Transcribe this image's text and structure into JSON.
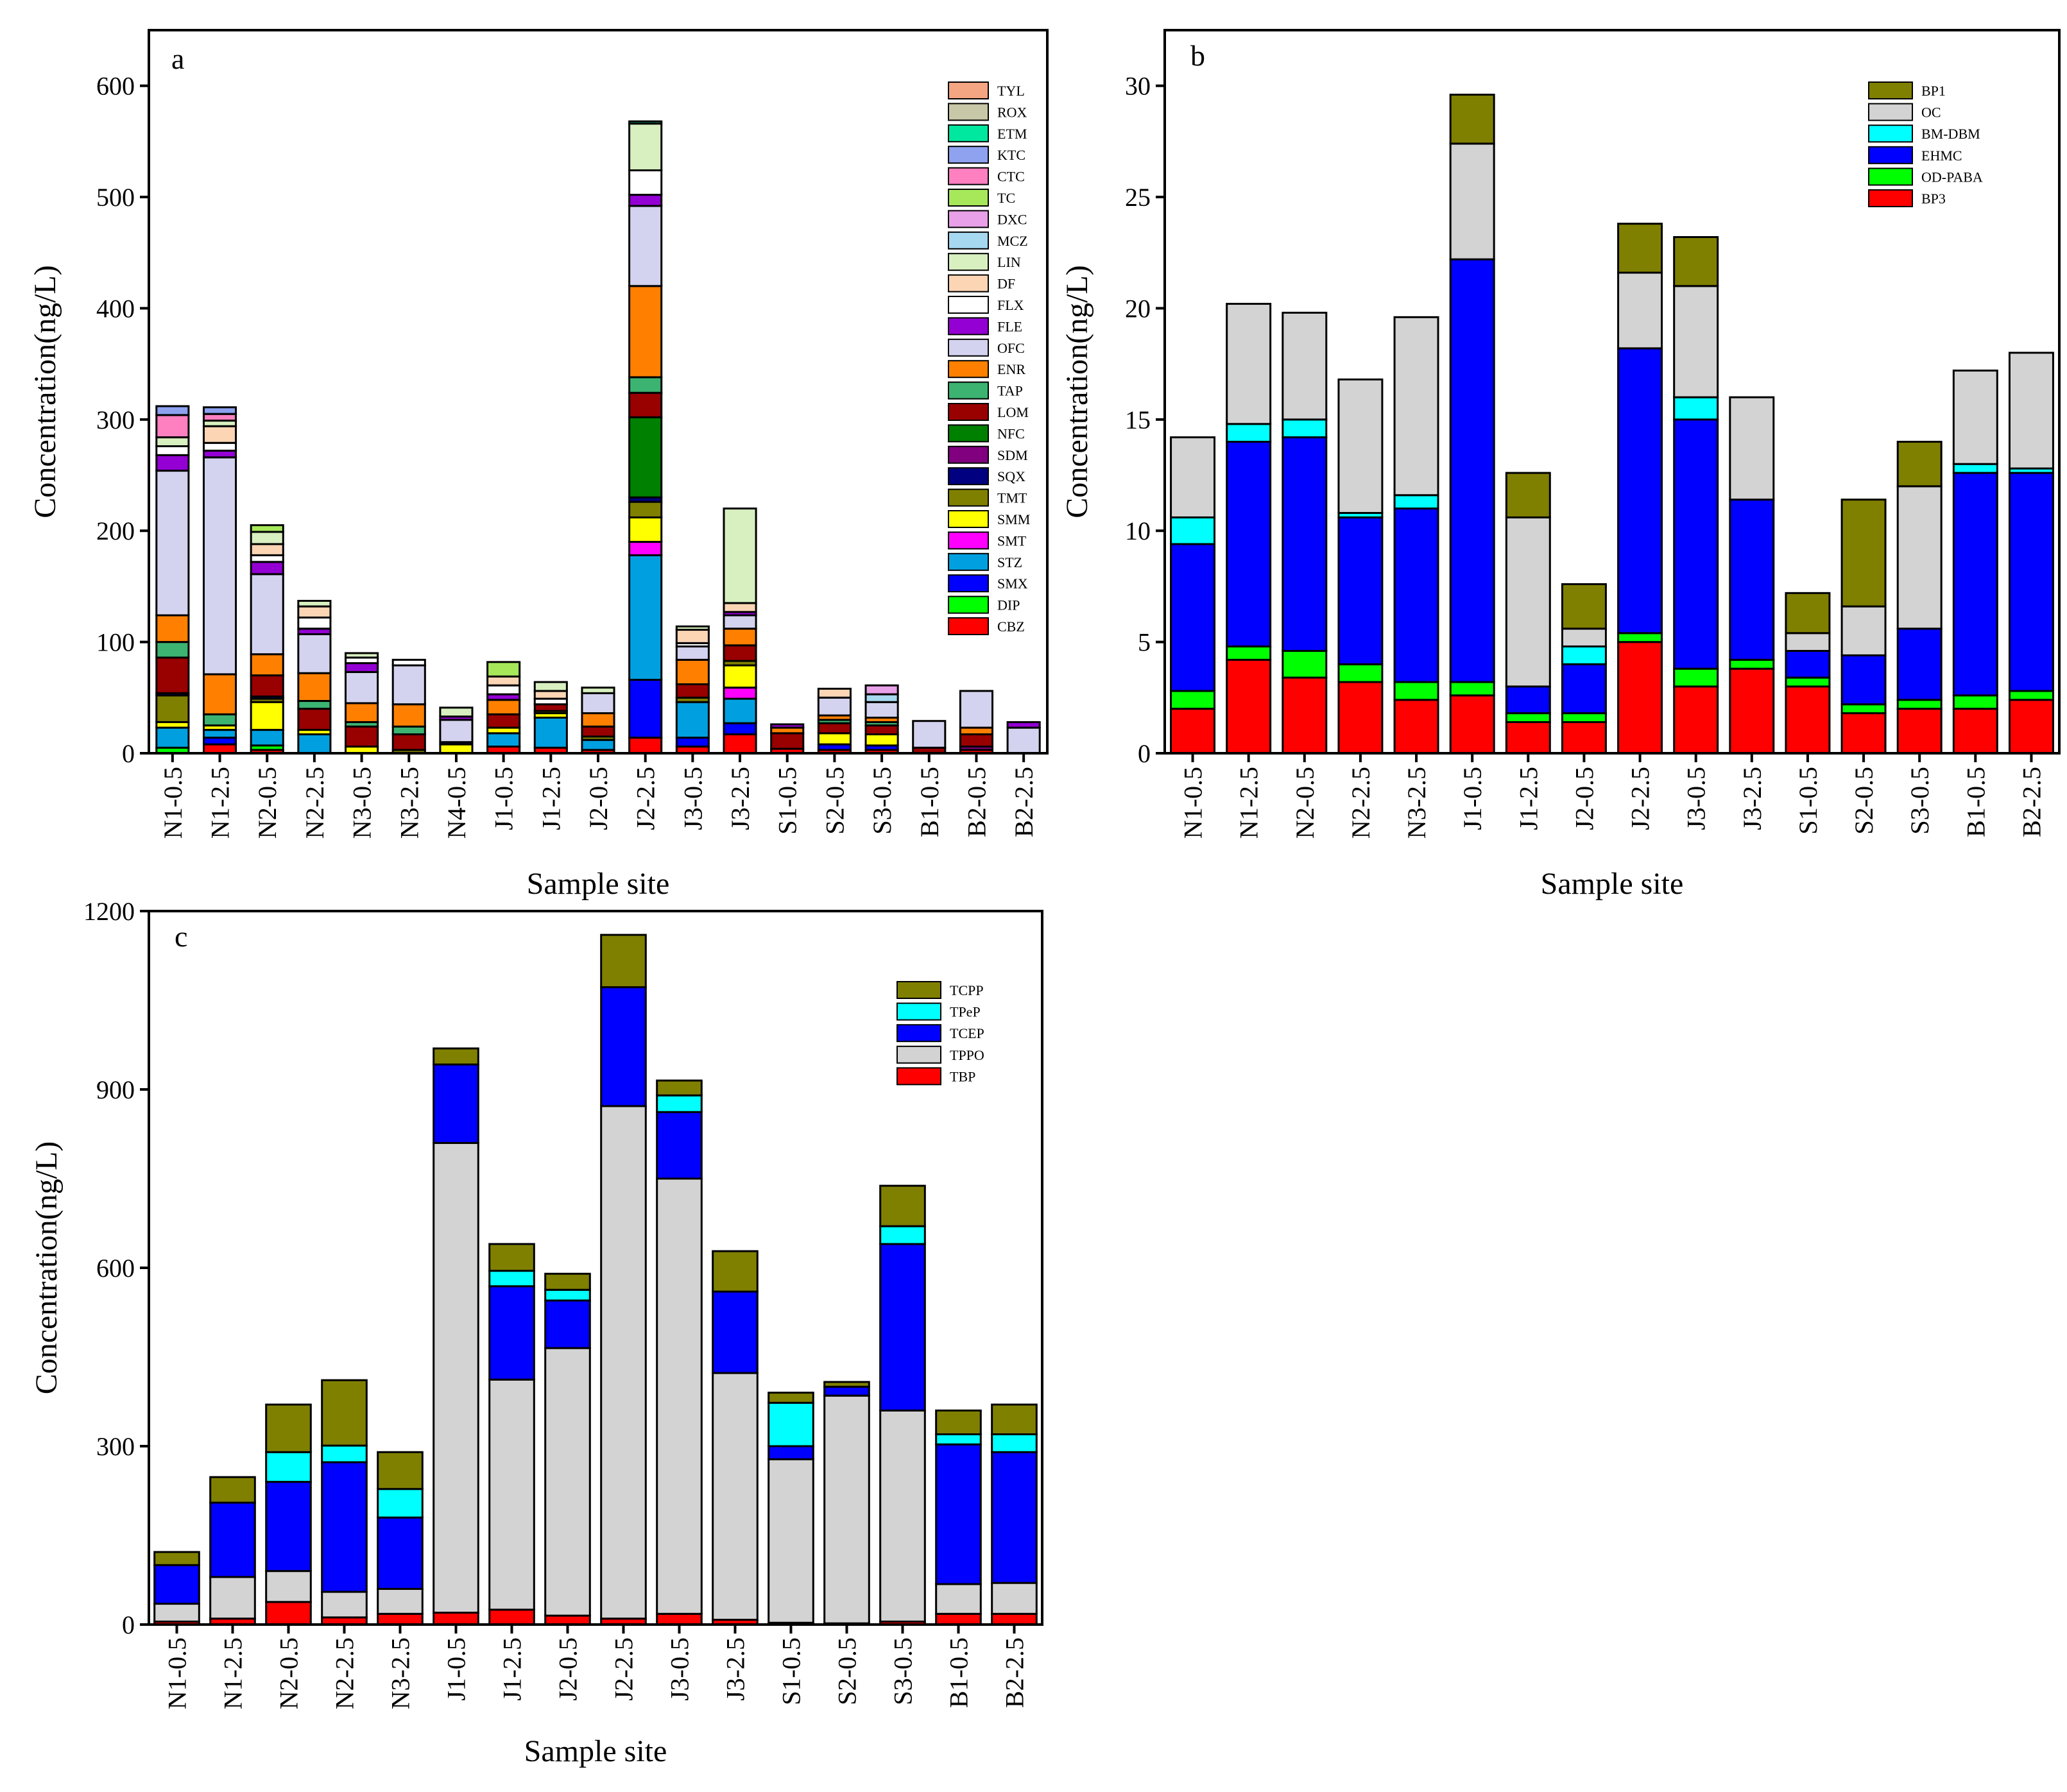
{
  "chart_data": [
    {
      "panel_label": "a",
      "type": "bar",
      "stacked": true,
      "ylabel": "Concentration(ng/L)",
      "xlabel": "Sample site",
      "ylim": [
        0,
        650
      ],
      "yticks": [
        0,
        100,
        200,
        300,
        400,
        500,
        600
      ],
      "legend_position": "top-right",
      "categories": [
        "N1-0.5",
        "N1-2.5",
        "N2-0.5",
        "N2-2.5",
        "N3-0.5",
        "N3-2.5",
        "N4-0.5",
        "J1-0.5",
        "J1-2.5",
        "J2-0.5",
        "J2-2.5",
        "J3-0.5",
        "J3-2.5",
        "S1-0.5",
        "S2-0.5",
        "S3-0.5",
        "B1-0.5",
        "B2-0.5",
        "B2-2.5"
      ],
      "series": [
        {
          "name": "CBZ",
          "color": "#ff0000",
          "values": [
            0,
            8,
            3,
            0,
            0,
            0,
            0,
            6,
            5,
            3,
            14,
            6,
            17,
            4,
            3,
            3,
            0,
            3,
            0
          ]
        },
        {
          "name": "DIP",
          "color": "#00ff00",
          "values": [
            5,
            0,
            4,
            0,
            0,
            0,
            0,
            0,
            0,
            0,
            0,
            0,
            0,
            0,
            0,
            0,
            0,
            0,
            0
          ]
        },
        {
          "name": "SMX",
          "color": "#0000ff",
          "values": [
            0,
            6,
            0,
            0,
            0,
            0,
            0,
            0,
            0,
            0,
            52,
            8,
            10,
            0,
            5,
            4,
            0,
            0,
            0
          ]
        },
        {
          "name": "STZ",
          "color": "#00a0e0",
          "values": [
            18,
            7,
            14,
            17,
            0,
            0,
            0,
            12,
            27,
            9,
            112,
            32,
            22,
            0,
            0,
            0,
            0,
            0,
            0
          ]
        },
        {
          "name": "SMT",
          "color": "#ff00ff",
          "values": [
            0,
            0,
            0,
            0,
            0,
            0,
            0,
            0,
            0,
            0,
            12,
            0,
            10,
            0,
            0,
            0,
            0,
            0,
            0
          ]
        },
        {
          "name": "SMM",
          "color": "#ffff00",
          "values": [
            5,
            4,
            25,
            4,
            6,
            0,
            8,
            5,
            4,
            0,
            22,
            0,
            20,
            0,
            10,
            10,
            0,
            0,
            0
          ]
        },
        {
          "name": "TMT",
          "color": "#808000",
          "values": [
            24,
            0,
            3,
            0,
            0,
            3,
            0,
            0,
            2,
            3,
            14,
            4,
            4,
            0,
            0,
            0,
            0,
            0,
            0
          ]
        },
        {
          "name": "SQX",
          "color": "#000080",
          "values": [
            2,
            0,
            2,
            0,
            0,
            0,
            2,
            0,
            0,
            0,
            4,
            0,
            0,
            0,
            0,
            0,
            0,
            0,
            0
          ]
        },
        {
          "name": "SDM",
          "color": "#800080",
          "values": [
            0,
            0,
            0,
            0,
            0,
            0,
            0,
            0,
            0,
            0,
            0,
            0,
            0,
            0,
            0,
            0,
            0,
            3,
            0
          ]
        },
        {
          "name": "NFC",
          "color": "#008000",
          "values": [
            0,
            0,
            0,
            0,
            0,
            0,
            0,
            0,
            0,
            0,
            72,
            0,
            0,
            0,
            0,
            0,
            0,
            0,
            0
          ]
        },
        {
          "name": "LOM",
          "color": "#990000",
          "values": [
            32,
            0,
            19,
            19,
            18,
            14,
            0,
            12,
            6,
            9,
            22,
            12,
            14,
            14,
            9,
            8,
            5,
            11,
            0
          ]
        },
        {
          "name": "TAP",
          "color": "#3cb371",
          "values": [
            14,
            10,
            0,
            7,
            4,
            7,
            0,
            0,
            0,
            0,
            14,
            0,
            0,
            0,
            3,
            3,
            0,
            0,
            0
          ]
        },
        {
          "name": "ENR",
          "color": "#ff8000",
          "values": [
            24,
            36,
            19,
            25,
            17,
            20,
            0,
            13,
            0,
            12,
            82,
            22,
            15,
            5,
            4,
            4,
            0,
            6,
            0
          ]
        },
        {
          "name": "OFC",
          "color": "#d3d3ef",
          "values": [
            130,
            195,
            72,
            35,
            28,
            35,
            20,
            0,
            0,
            18,
            72,
            12,
            12,
            0,
            16,
            14,
            24,
            33,
            23
          ]
        },
        {
          "name": "FLE",
          "color": "#9400d3",
          "values": [
            14,
            6,
            11,
            5,
            8,
            0,
            3,
            5,
            0,
            0,
            10,
            0,
            3,
            3,
            0,
            0,
            0,
            0,
            5
          ]
        },
        {
          "name": "FLX",
          "color": "#ffffff",
          "values": [
            8,
            7,
            6,
            10,
            5,
            5,
            0,
            8,
            5,
            0,
            22,
            3,
            0,
            0,
            0,
            0,
            0,
            0,
            0
          ]
        },
        {
          "name": "DF",
          "color": "#fcd5b5",
          "values": [
            0,
            15,
            10,
            10,
            0,
            0,
            0,
            8,
            7,
            0,
            0,
            12,
            8,
            0,
            8,
            0,
            0,
            0,
            0
          ]
        },
        {
          "name": "LIN",
          "color": "#d8f0c0",
          "values": [
            8,
            5,
            11,
            5,
            4,
            0,
            8,
            0,
            8,
            5,
            42,
            3,
            85,
            0,
            0,
            0,
            0,
            0,
            0
          ]
        },
        {
          "name": "MCZ",
          "color": "#a6d8f0",
          "values": [
            0,
            0,
            0,
            0,
            0,
            0,
            0,
            0,
            0,
            0,
            0,
            0,
            0,
            0,
            0,
            7,
            0,
            0,
            0
          ]
        },
        {
          "name": "DXC",
          "color": "#e8a0e8",
          "values": [
            0,
            0,
            0,
            0,
            0,
            0,
            0,
            0,
            0,
            0,
            0,
            0,
            0,
            0,
            0,
            8,
            0,
            0,
            0
          ]
        },
        {
          "name": "TC",
          "color": "#a6e85a",
          "values": [
            0,
            0,
            6,
            0,
            0,
            0,
            0,
            13,
            0,
            0,
            0,
            0,
            0,
            0,
            0,
            0,
            0,
            0,
            0
          ]
        },
        {
          "name": "CTC",
          "color": "#ff80c0",
          "values": [
            20,
            6,
            0,
            0,
            0,
            0,
            0,
            0,
            0,
            0,
            0,
            0,
            0,
            0,
            0,
            0,
            0,
            0,
            0
          ]
        },
        {
          "name": "KTC",
          "color": "#8ea2f0",
          "values": [
            8,
            6,
            0,
            0,
            0,
            0,
            0,
            0,
            0,
            0,
            0,
            0,
            0,
            0,
            0,
            0,
            0,
            0,
            0
          ]
        },
        {
          "name": "ETM",
          "color": "#00e8a0",
          "values": [
            0,
            0,
            0,
            0,
            0,
            0,
            0,
            0,
            0,
            0,
            2,
            0,
            0,
            0,
            0,
            0,
            0,
            0,
            0
          ]
        },
        {
          "name": "ROX",
          "color": "#c8c8a8",
          "values": [
            0,
            0,
            0,
            0,
            0,
            0,
            0,
            0,
            0,
            0,
            0,
            0,
            0,
            0,
            0,
            0,
            0,
            0,
            0
          ]
        },
        {
          "name": "TYL",
          "color": "#f4a582",
          "values": [
            0,
            0,
            0,
            0,
            0,
            0,
            0,
            0,
            0,
            0,
            0,
            0,
            0,
            0,
            0,
            0,
            0,
            0,
            0
          ]
        }
      ]
    },
    {
      "panel_label": "b",
      "type": "bar",
      "stacked": true,
      "ylabel": "Concentration(ng/L)",
      "xlabel": "Sample site",
      "ylim": [
        0,
        32.5
      ],
      "yticks": [
        0,
        5,
        10,
        15,
        20,
        25,
        30
      ],
      "legend_position": "top-right",
      "categories": [
        "N1-0.5",
        "N1-2.5",
        "N2-0.5",
        "N2-2.5",
        "N3-2.5",
        "J1-0.5",
        "J1-2.5",
        "J2-0.5",
        "J2-2.5",
        "J3-0.5",
        "J3-2.5",
        "S1-0.5",
        "S2-0.5",
        "S3-0.5",
        "B1-0.5",
        "B2-2.5"
      ],
      "series": [
        {
          "name": "BP3",
          "color": "#ff0000",
          "values": [
            2.0,
            4.2,
            3.4,
            3.2,
            2.4,
            2.6,
            1.4,
            1.4,
            5.0,
            3.0,
            3.8,
            3.0,
            1.8,
            2.0,
            2.0,
            2.4
          ]
        },
        {
          "name": "OD-PABA",
          "color": "#00ff00",
          "values": [
            0.8,
            0.6,
            1.2,
            0.8,
            0.8,
            0.6,
            0.4,
            0.4,
            0.4,
            0.8,
            0.4,
            0.4,
            0.4,
            0.4,
            0.6,
            0.4
          ]
        },
        {
          "name": "EHMC",
          "color": "#0000ff",
          "values": [
            6.6,
            9.2,
            9.6,
            6.6,
            7.8,
            19.0,
            1.2,
            2.2,
            12.8,
            11.2,
            7.2,
            1.2,
            2.2,
            3.2,
            10.0,
            9.8
          ]
        },
        {
          "name": "BM-DBM",
          "color": "#00ffff",
          "values": [
            1.2,
            0.8,
            0.8,
            0.2,
            0.6,
            0,
            0,
            0.8,
            0,
            1.0,
            0,
            0,
            0,
            0,
            0.4,
            0.2
          ]
        },
        {
          "name": "OC",
          "color": "#d3d3d3",
          "values": [
            3.6,
            5.4,
            4.8,
            6.0,
            8.0,
            5.2,
            7.6,
            0.8,
            3.4,
            5.0,
            4.6,
            0.8,
            2.2,
            6.4,
            4.2,
            5.2
          ]
        },
        {
          "name": "BP1",
          "color": "#808000",
          "values": [
            0,
            0,
            0,
            0,
            0,
            2.2,
            2.0,
            2.0,
            2.2,
            2.2,
            0,
            1.8,
            4.8,
            2.0,
            0,
            0
          ]
        }
      ]
    },
    {
      "panel_label": "c",
      "type": "bar",
      "stacked": true,
      "ylabel": "Concentration(ng/L)",
      "xlabel": "Sample site",
      "ylim": [
        0,
        1200
      ],
      "yticks": [
        0,
        300,
        600,
        900,
        1200
      ],
      "legend_position": "top-right",
      "categories": [
        "N1-0.5",
        "N1-2.5",
        "N2-0.5",
        "N2-2.5",
        "N3-2.5",
        "J1-0.5",
        "J1-2.5",
        "J2-0.5",
        "J2-2.5",
        "J3-0.5",
        "J3-2.5",
        "S1-0.5",
        "S2-0.5",
        "S3-0.5",
        "B1-0.5",
        "B2-2.5"
      ],
      "series": [
        {
          "name": "TBP",
          "color": "#ff0000",
          "values": [
            5,
            10,
            38,
            12,
            18,
            20,
            25,
            15,
            10,
            18,
            8,
            3,
            2,
            5,
            18,
            18
          ]
        },
        {
          "name": "TPPO",
          "color": "#d3d3d3",
          "values": [
            30,
            70,
            52,
            43,
            42,
            790,
            387,
            450,
            862,
            732,
            415,
            275,
            383,
            355,
            50,
            52
          ]
        },
        {
          "name": "TCEP",
          "color": "#0000ff",
          "values": [
            65,
            125,
            150,
            218,
            120,
            132,
            157,
            80,
            200,
            112,
            137,
            22,
            15,
            280,
            235,
            220
          ]
        },
        {
          "name": "TPeP",
          "color": "#00ffff",
          "values": [
            0,
            0,
            50,
            28,
            48,
            0,
            26,
            18,
            0,
            28,
            0,
            73,
            0,
            30,
            17,
            30
          ]
        },
        {
          "name": "TCPP",
          "color": "#808000",
          "values": [
            22,
            43,
            80,
            110,
            62,
            27,
            45,
            27,
            88,
            25,
            68,
            17,
            8,
            68,
            40,
            50
          ]
        }
      ]
    }
  ]
}
